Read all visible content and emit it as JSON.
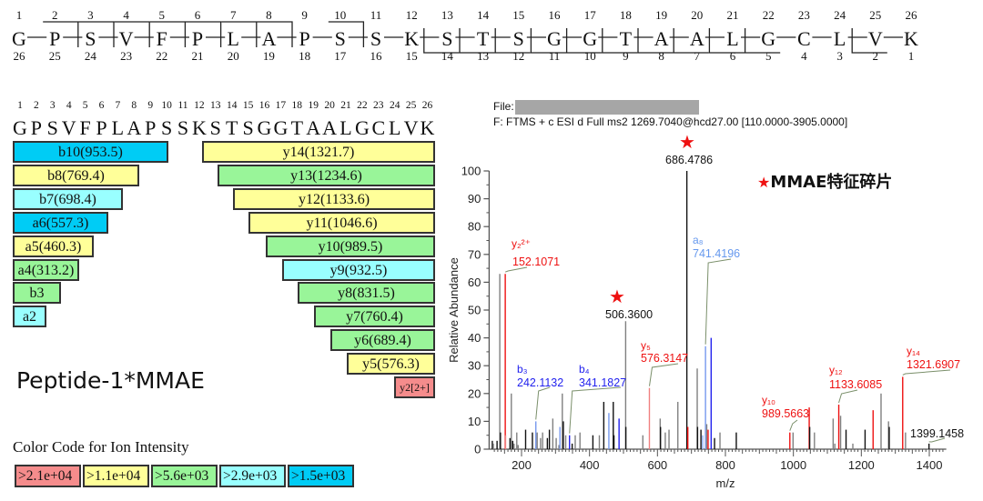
{
  "sequence_map": {
    "residues": [
      "G",
      "P",
      "S",
      "V",
      "F",
      "P",
      "L",
      "A",
      "P",
      "S",
      "S",
      "K",
      "S",
      "T",
      "S",
      "G",
      "G",
      "T",
      "A",
      "A",
      "L",
      "G",
      "C",
      "L",
      "V",
      "K"
    ],
    "top_numbers": [
      "1",
      "2",
      "3",
      "4",
      "5",
      "6",
      "7",
      "8",
      "9",
      "10",
      "11",
      "12",
      "13",
      "14",
      "15",
      "16",
      "17",
      "18",
      "19",
      "20",
      "21",
      "22",
      "23",
      "24",
      "25",
      "26"
    ],
    "bottom_numbers": [
      "26",
      "25",
      "24",
      "23",
      "22",
      "21",
      "20",
      "19",
      "18",
      "17",
      "16",
      "15",
      "14",
      "13",
      "12",
      "11",
      "10",
      "9",
      "8",
      "7",
      "6",
      "5",
      "4",
      "3",
      "2",
      "1"
    ],
    "b_ion_cleavages_after": [
      2,
      3,
      4,
      5,
      6,
      7,
      8,
      10
    ],
    "y_ion_cleavages_before": [
      13,
      14,
      15,
      16,
      17,
      18,
      19,
      20,
      21,
      22,
      25
    ]
  },
  "fragment_table": {
    "numbers": [
      "1",
      "2",
      "3",
      "4",
      "5",
      "6",
      "7",
      "8",
      "9",
      "10",
      "11",
      "12",
      "13",
      "14",
      "15",
      "16",
      "17",
      "18",
      "19",
      "20",
      "21",
      "22",
      "23",
      "24",
      "25",
      "26"
    ],
    "residues": [
      "G",
      "P",
      "S",
      "V",
      "F",
      "P",
      "L",
      "A",
      "P",
      "S",
      "S",
      "K",
      "S",
      "T",
      "S",
      "G",
      "G",
      "T",
      "A",
      "A",
      "L",
      "G",
      "C",
      "L",
      "V",
      "K"
    ],
    "n_terminal_ions": [
      {
        "label": "b10(953.5)",
        "length": 10,
        "intensity_class": ">1.5e+03"
      },
      {
        "label": "b8(769.4)",
        "length": 8,
        "intensity_class": ">1.1e+04"
      },
      {
        "label": "b7(698.4)",
        "length": 7,
        "intensity_class": ">2.9e+03"
      },
      {
        "label": "a6(557.3)",
        "length": 6,
        "intensity_class": ">1.5e+03"
      },
      {
        "label": "a5(460.3)",
        "length": 5,
        "intensity_class": ">1.1e+04"
      },
      {
        "label": "a4(313.2)",
        "length": 4,
        "intensity_class": ">5.6e+03"
      },
      {
        "label": "b3",
        "length": 3,
        "intensity_class": ">5.6e+03"
      },
      {
        "label": "a2",
        "length": 2,
        "intensity_class": ">2.9e+03"
      }
    ],
    "c_terminal_ions": [
      {
        "label": "y14(1321.7)",
        "length": 14,
        "intensity_class": ">1.1e+04"
      },
      {
        "label": "y13(1234.6)",
        "length": 13,
        "intensity_class": ">5.6e+03"
      },
      {
        "label": "y12(1133.6)",
        "length": 12,
        "intensity_class": ">1.1e+04"
      },
      {
        "label": "y11(1046.6)",
        "length": 11,
        "intensity_class": ">1.1e+04"
      },
      {
        "label": "y10(989.5)",
        "length": 10,
        "intensity_class": ">5.6e+03"
      },
      {
        "label": "y9(932.5)",
        "length": 9,
        "intensity_class": ">2.9e+03"
      },
      {
        "label": "y8(831.5)",
        "length": 8,
        "intensity_class": ">5.6e+03"
      },
      {
        "label": "y7(760.4)",
        "length": 7,
        "intensity_class": ">5.6e+03"
      },
      {
        "label": "y6(689.4)",
        "length": 6,
        "intensity_class": ">5.6e+03"
      },
      {
        "label": "y5(576.3)",
        "length": 5,
        "intensity_class": ">1.1e+04"
      },
      {
        "label": "y2[2+]",
        "length": 2,
        "intensity_class": ">2.1e+04"
      }
    ]
  },
  "peptide_title": "Peptide-1*MMAE",
  "legend": {
    "title": "Color Code for Ion Intensity",
    "entries": [
      {
        "label": ">2.1e+04",
        "color": "#f58c8c"
      },
      {
        "label": ">1.1e+04",
        "color": "#ffff99"
      },
      {
        "label": ">5.6e+03",
        "color": "#99f599"
      },
      {
        "label": ">2.9e+03",
        "color": "#99ffff"
      },
      {
        "label": ">1.5e+03",
        "color": "#00ccf5"
      }
    ]
  },
  "spectrum_header": {
    "file_label": "File:",
    "scan_line": "F: FTMS + c ESI d Full ms2 1269.7040@hcd27.00 [110.0000-3905.0000]"
  },
  "mmae_note": {
    "star": "★",
    "text": "MMAE特征碎片"
  },
  "chart_data": {
    "type": "bar",
    "title": "",
    "xlabel": "m/z",
    "ylabel": "Relative Abundance",
    "xlim": [
      110,
      1450
    ],
    "ylim": [
      0,
      100
    ],
    "xticks": [
      200,
      400,
      600,
      800,
      1000,
      1200,
      1400
    ],
    "yticks": [
      0,
      10,
      20,
      30,
      40,
      50,
      60,
      70,
      80,
      90,
      100
    ],
    "colors": {
      "unassigned_dark": "#111111",
      "unassigned_grey": "#808080",
      "y_ion": "#ee1111",
      "y_ion_light": "#f08080",
      "b_ion": "#2222ee",
      "b_ion_light": "#7799ee",
      "a_ion": "#88aaf0",
      "star": "#ee1111"
    },
    "peaks": [
      {
        "mz": 114,
        "y": 3,
        "kind": "dark"
      },
      {
        "mz": 117,
        "y": 2,
        "kind": "grey"
      },
      {
        "mz": 128,
        "y": 3,
        "kind": "dark"
      },
      {
        "mz": 136,
        "y": 63,
        "kind": "grey"
      },
      {
        "mz": 138,
        "y": 6,
        "kind": "dark"
      },
      {
        "mz": 152.1,
        "y": 63,
        "kind": "y"
      },
      {
        "mz": 153,
        "y": 5,
        "kind": "yl"
      },
      {
        "mz": 166,
        "y": 4,
        "kind": "dark"
      },
      {
        "mz": 170,
        "y": 20,
        "kind": "grey"
      },
      {
        "mz": 174,
        "y": 3,
        "kind": "dark"
      },
      {
        "mz": 178,
        "y": 2,
        "kind": "grey"
      },
      {
        "mz": 186,
        "y": 6,
        "kind": "grey"
      },
      {
        "mz": 190,
        "y": 1.5,
        "kind": "grey"
      },
      {
        "mz": 212,
        "y": 7,
        "kind": "dark"
      },
      {
        "mz": 232,
        "y": 6,
        "kind": "dark"
      },
      {
        "mz": 242.1,
        "y": 10,
        "kind": "bl"
      },
      {
        "mz": 246,
        "y": 6,
        "kind": "grey"
      },
      {
        "mz": 256,
        "y": 4,
        "kind": "grey"
      },
      {
        "mz": 262,
        "y": 6,
        "kind": "grey"
      },
      {
        "mz": 276,
        "y": 4,
        "kind": "dark"
      },
      {
        "mz": 282,
        "y": 7,
        "kind": "dark"
      },
      {
        "mz": 292,
        "y": 11,
        "kind": "grey"
      },
      {
        "mz": 302,
        "y": 4,
        "kind": "grey"
      },
      {
        "mz": 310,
        "y": 1.5,
        "kind": "grey"
      },
      {
        "mz": 313,
        "y": 8,
        "kind": "bl"
      },
      {
        "mz": 320,
        "y": 20,
        "kind": "grey"
      },
      {
        "mz": 323,
        "y": 10,
        "kind": "dark"
      },
      {
        "mz": 330,
        "y": 5,
        "kind": "grey"
      },
      {
        "mz": 341.2,
        "y": 5,
        "kind": "b"
      },
      {
        "mz": 349,
        "y": 2,
        "kind": "dark"
      },
      {
        "mz": 358,
        "y": 5,
        "kind": "grey"
      },
      {
        "mz": 372,
        "y": 6,
        "kind": "grey"
      },
      {
        "mz": 410,
        "y": 5,
        "kind": "dark"
      },
      {
        "mz": 429,
        "y": 5,
        "kind": "grey"
      },
      {
        "mz": 442,
        "y": 17,
        "kind": "dark"
      },
      {
        "mz": 457,
        "y": 13,
        "kind": "bl"
      },
      {
        "mz": 470,
        "y": 17,
        "kind": "dark"
      },
      {
        "mz": 472,
        "y": 5,
        "kind": "dark"
      },
      {
        "mz": 487,
        "y": 11,
        "kind": "b"
      },
      {
        "mz": 506.4,
        "y": 46,
        "kind": "grey"
      },
      {
        "mz": 507,
        "y": 8,
        "kind": "dark"
      },
      {
        "mz": 557,
        "y": 5,
        "kind": "grey"
      },
      {
        "mz": 576.3,
        "y": 22,
        "kind": "yl"
      },
      {
        "mz": 608,
        "y": 11,
        "kind": "grey"
      },
      {
        "mz": 609,
        "y": 8,
        "kind": "dark"
      },
      {
        "mz": 623,
        "y": 6,
        "kind": "grey"
      },
      {
        "mz": 634,
        "y": 7,
        "kind": "grey"
      },
      {
        "mz": 660,
        "y": 17,
        "kind": "grey"
      },
      {
        "mz": 686.5,
        "y": 100,
        "kind": "dark"
      },
      {
        "mz": 689.4,
        "y": 8,
        "kind": "y"
      },
      {
        "mz": 717,
        "y": 29,
        "kind": "grey"
      },
      {
        "mz": 718,
        "y": 8,
        "kind": "dark"
      },
      {
        "mz": 728,
        "y": 7,
        "kind": "dark"
      },
      {
        "mz": 733,
        "y": 5,
        "kind": "al"
      },
      {
        "mz": 741.4,
        "y": 37,
        "kind": "bl"
      },
      {
        "mz": 745,
        "y": 9,
        "kind": "grey"
      },
      {
        "mz": 749,
        "y": 7,
        "kind": "y"
      },
      {
        "mz": 758,
        "y": 40,
        "kind": "b"
      },
      {
        "mz": 768,
        "y": 4,
        "kind": "dark"
      },
      {
        "mz": 784,
        "y": 6,
        "kind": "grey"
      },
      {
        "mz": 832,
        "y": 6,
        "kind": "dark"
      },
      {
        "mz": 989.6,
        "y": 6,
        "kind": "y"
      },
      {
        "mz": 999,
        "y": 6,
        "kind": "grey"
      },
      {
        "mz": 1046.6,
        "y": 15,
        "kind": "y"
      },
      {
        "mz": 1048,
        "y": 8,
        "kind": "dark"
      },
      {
        "mz": 1062,
        "y": 6,
        "kind": "grey"
      },
      {
        "mz": 1117,
        "y": 11,
        "kind": "grey"
      },
      {
        "mz": 1122,
        "y": 2,
        "kind": "grey"
      },
      {
        "mz": 1133.6,
        "y": 16,
        "kind": "y"
      },
      {
        "mz": 1139,
        "y": 12,
        "kind": "grey"
      },
      {
        "mz": 1155,
        "y": 7,
        "kind": "dark"
      },
      {
        "mz": 1175,
        "y": 2,
        "kind": "grey"
      },
      {
        "mz": 1211,
        "y": 7,
        "kind": "dark"
      },
      {
        "mz": 1234.6,
        "y": 14,
        "kind": "y"
      },
      {
        "mz": 1258,
        "y": 20,
        "kind": "grey"
      },
      {
        "mz": 1280,
        "y": 10,
        "kind": "grey"
      },
      {
        "mz": 1282,
        "y": 8,
        "kind": "dark"
      },
      {
        "mz": 1321.7,
        "y": 26,
        "kind": "y"
      },
      {
        "mz": 1330,
        "y": 6,
        "kind": "grey"
      },
      {
        "mz": 1399.1,
        "y": 2,
        "kind": "dark"
      }
    ],
    "annotations": [
      {
        "ion": "y₂²⁺",
        "mz_label": "152.1071",
        "peak_mz": 152.1,
        "color": "#ee1111"
      },
      {
        "ion": "b₃",
        "mz_label": "242.1132",
        "peak_mz": 242.1,
        "color": "#2222ee"
      },
      {
        "ion": "b₄",
        "mz_label": "341.1827",
        "peak_mz": 341.2,
        "color": "#2222ee"
      },
      {
        "ion": "",
        "mz_label": "506.3600",
        "peak_mz": 506.4,
        "color": "#111111",
        "star": true
      },
      {
        "ion": "y₅",
        "mz_label": "576.3147",
        "peak_mz": 576.3,
        "color": "#ee1111"
      },
      {
        "ion": "",
        "mz_label": "686.4786",
        "peak_mz": 686.5,
        "color": "#111111",
        "star": true
      },
      {
        "ion": "a₈",
        "mz_label": "741.4196",
        "peak_mz": 741.4,
        "color": "#6699ee"
      },
      {
        "ion": "y₁₀",
        "mz_label": "989.5663",
        "peak_mz": 989.6,
        "color": "#ee1111"
      },
      {
        "ion": "y₁₂",
        "mz_label": "1133.6085",
        "peak_mz": 1133.6,
        "color": "#ee1111"
      },
      {
        "ion": "y₁₄",
        "mz_label": "1321.6907",
        "peak_mz": 1321.7,
        "color": "#ee1111"
      },
      {
        "ion": "",
        "mz_label": "1399.1458",
        "peak_mz": 1399.1,
        "color": "#111111"
      }
    ]
  }
}
